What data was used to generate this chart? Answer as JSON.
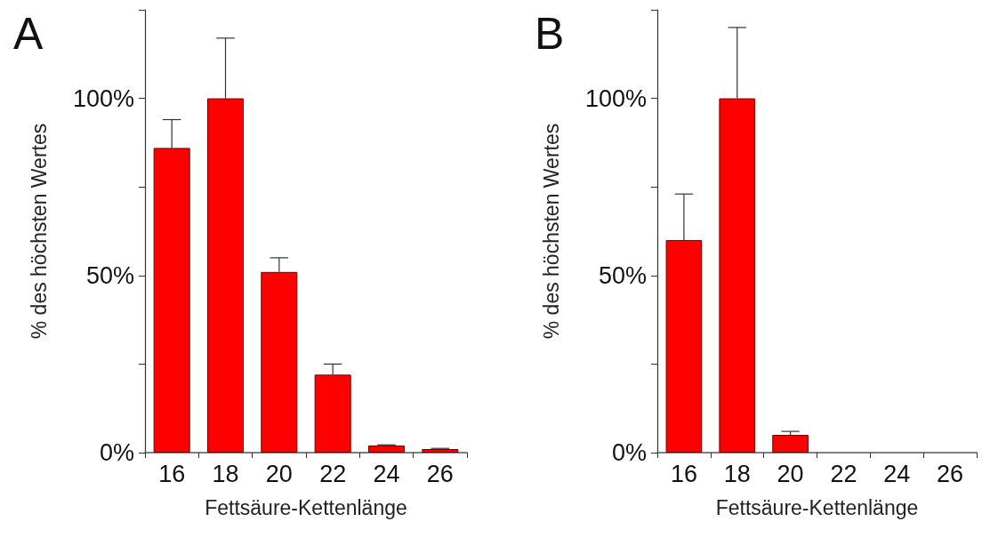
{
  "chart_data": [
    {
      "type": "bar",
      "title": "A",
      "xlabel": "Fettsäure-Kettenlänge",
      "ylabel": "% des höchsten Wertes",
      "categories": [
        "16",
        "18",
        "20",
        "22",
        "24",
        "26"
      ],
      "values": [
        86,
        100,
        51,
        22,
        2,
        1
      ],
      "errors": [
        [
          86,
          94
        ],
        [
          100,
          117
        ],
        [
          51,
          55
        ],
        [
          22,
          25
        ],
        [
          2,
          2.2
        ],
        [
          1,
          1.2
        ]
      ],
      "color": "#ff0000",
      "ylim": [
        0,
        125
      ],
      "yticks": [
        {
          "value": 0,
          "label": "0%"
        },
        {
          "value": 25,
          "label": null
        },
        {
          "value": 50,
          "label": "50%"
        },
        {
          "value": 75,
          "label": null
        },
        {
          "value": 100,
          "label": "100%"
        },
        {
          "value": 125,
          "label": null
        }
      ],
      "grid": false
    },
    {
      "type": "bar",
      "title": "B",
      "xlabel": "Fettsäure-Kettenlänge",
      "ylabel": "% des höchsten Wertes",
      "categories": [
        "16",
        "18",
        "20",
        "22",
        "24",
        "26"
      ],
      "values": [
        60,
        100,
        5,
        null,
        null,
        null
      ],
      "errors": [
        [
          60,
          73
        ],
        [
          100,
          120
        ],
        [
          5,
          6
        ],
        null,
        null,
        null
      ],
      "color": "#ff0000",
      "ylim": [
        0,
        125
      ],
      "yticks": [
        {
          "value": 0,
          "label": "0%"
        },
        {
          "value": 25,
          "label": null
        },
        {
          "value": 50,
          "label": "50%"
        },
        {
          "value": 75,
          "label": null
        },
        {
          "value": 100,
          "label": "100%"
        },
        {
          "value": 125,
          "label": null
        }
      ],
      "grid": false
    }
  ]
}
